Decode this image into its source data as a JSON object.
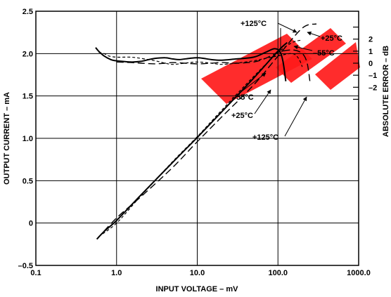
{
  "chart_data": {
    "type": "line",
    "title": "",
    "xlabel": "INPUT VOLTAGE – mV",
    "ylabel": "OUTPUT CURRENT – mA",
    "y2label": "ABSOLUTE ERROR – dB",
    "x_scale": "log",
    "xlim": [
      0.1,
      1000
    ],
    "ylim": [
      -0.5,
      2.5
    ],
    "y2lim": [
      -3.5,
      3.5
    ],
    "grid": true,
    "x_ticks": [
      {
        "value": 0.1,
        "label": "0.1"
      },
      {
        "value": 1,
        "label": "1.0"
      },
      {
        "value": 10,
        "label": "10.0"
      },
      {
        "value": 100,
        "label": "100.0"
      },
      {
        "value": 1000,
        "label": "1000.0"
      }
    ],
    "y_ticks": [
      {
        "value": -0.5,
        "label": "–0.5"
      },
      {
        "value": 0,
        "label": "0"
      },
      {
        "value": 0.5,
        "label": "0.5"
      },
      {
        "value": 1.0,
        "label": "1.0"
      },
      {
        "value": 1.5,
        "label": "1.5"
      },
      {
        "value": 2.0,
        "label": "2.0"
      },
      {
        "value": 2.5,
        "label": "2.5"
      }
    ],
    "y2_ticks": [
      {
        "value": 2,
        "label": "2"
      },
      {
        "value": 1,
        "label": "1"
      },
      {
        "value": 0,
        "label": "0"
      },
      {
        "value": -1,
        "label": "–1"
      },
      {
        "value": -2,
        "label": "–2"
      }
    ],
    "y2_minor_ticks": [
      3,
      -3
    ],
    "series": [
      {
        "name": "+25°C",
        "quantity": "output current",
        "axis": "left",
        "style": "solid",
        "x": [
          0.57,
          0.7,
          1,
          2,
          5,
          10,
          20,
          50,
          100,
          130
        ],
        "y": [
          -0.19,
          -0.1,
          0.03,
          0.33,
          0.72,
          1.01,
          1.31,
          1.71,
          2.03,
          2.13
        ]
      },
      {
        "name": "–55°C",
        "quantity": "output current",
        "axis": "left",
        "style": "dashed-short",
        "x": [
          0.6,
          1,
          2,
          5,
          10,
          20,
          50,
          100,
          150,
          200
        ],
        "y": [
          -0.16,
          0.0,
          0.32,
          0.73,
          1.02,
          1.33,
          1.73,
          2.01,
          2.13,
          2.16
        ]
      },
      {
        "name": "+125°C",
        "quantity": "output current",
        "axis": "left",
        "style": "dashed-long",
        "x": [
          0.57,
          1,
          2,
          5,
          10,
          20,
          50,
          100,
          200,
          300
        ],
        "y": [
          -0.19,
          0.06,
          0.31,
          0.66,
          0.96,
          1.25,
          1.63,
          1.97,
          2.3,
          2.35
        ]
      },
      {
        "name": "+25°C",
        "quantity": "absolute error",
        "axis": "right",
        "style": "solid",
        "x": [
          0.55,
          0.6,
          0.7,
          0.85,
          1,
          1.5,
          2,
          2.5,
          3,
          4,
          5,
          6,
          8,
          10,
          12,
          15,
          20,
          30,
          50,
          70,
          90,
          105,
          115,
          125
        ],
        "y": [
          1.3,
          1.0,
          0.6,
          0.3,
          0.2,
          0.1,
          0.15,
          0.3,
          0.4,
          0.45,
          0.35,
          0.3,
          0.4,
          0.45,
          0.4,
          0.3,
          0.25,
          0.35,
          0.5,
          0.9,
          1.2,
          1.0,
          0.2,
          -1.5
        ]
      },
      {
        "name": "–55°C",
        "quantity": "absolute error",
        "axis": "right",
        "style": "dashed-short",
        "x": [
          0.6,
          0.7,
          0.8,
          1,
          1.5,
          2,
          3,
          4,
          5,
          7,
          10,
          15,
          20,
          30,
          50,
          70,
          100,
          150,
          180,
          200
        ],
        "y": [
          0.9,
          0.8,
          0.6,
          0.5,
          0.5,
          0.4,
          0.2,
          0.0,
          -0.1,
          0.0,
          0.1,
          0.0,
          -0.1,
          0.0,
          0.2,
          0.4,
          0.6,
          0.8,
          0.4,
          -0.3
        ]
      },
      {
        "name": "+125°C",
        "quantity": "absolute error",
        "axis": "right",
        "style": "dashed-long",
        "x": [
          1,
          1.5,
          2,
          3,
          4,
          5,
          7,
          10,
          15,
          20,
          30,
          50,
          70,
          100,
          150,
          200,
          230,
          250
        ],
        "y": [
          0.1,
          0.05,
          0.0,
          -0.05,
          0.0,
          0.05,
          0.0,
          -0.05,
          0.0,
          0.05,
          0.0,
          0.1,
          0.4,
          0.9,
          1.1,
          0.8,
          0.0,
          -1.6
        ]
      }
    ],
    "annotations": [
      {
        "id": "ann-125-top",
        "text": "+125°C"
      },
      {
        "id": "ann-25-top",
        "text": "+25°C"
      },
      {
        "id": "ann-55-top",
        "text": "–55°C"
      },
      {
        "id": "ann-55-bottom",
        "text": "–55°C"
      },
      {
        "id": "ann-25-bottom",
        "text": "+25°C"
      },
      {
        "id": "ann-125-bottom",
        "text": "+125°C"
      }
    ],
    "watermark_color": "#ff1a1a"
  }
}
